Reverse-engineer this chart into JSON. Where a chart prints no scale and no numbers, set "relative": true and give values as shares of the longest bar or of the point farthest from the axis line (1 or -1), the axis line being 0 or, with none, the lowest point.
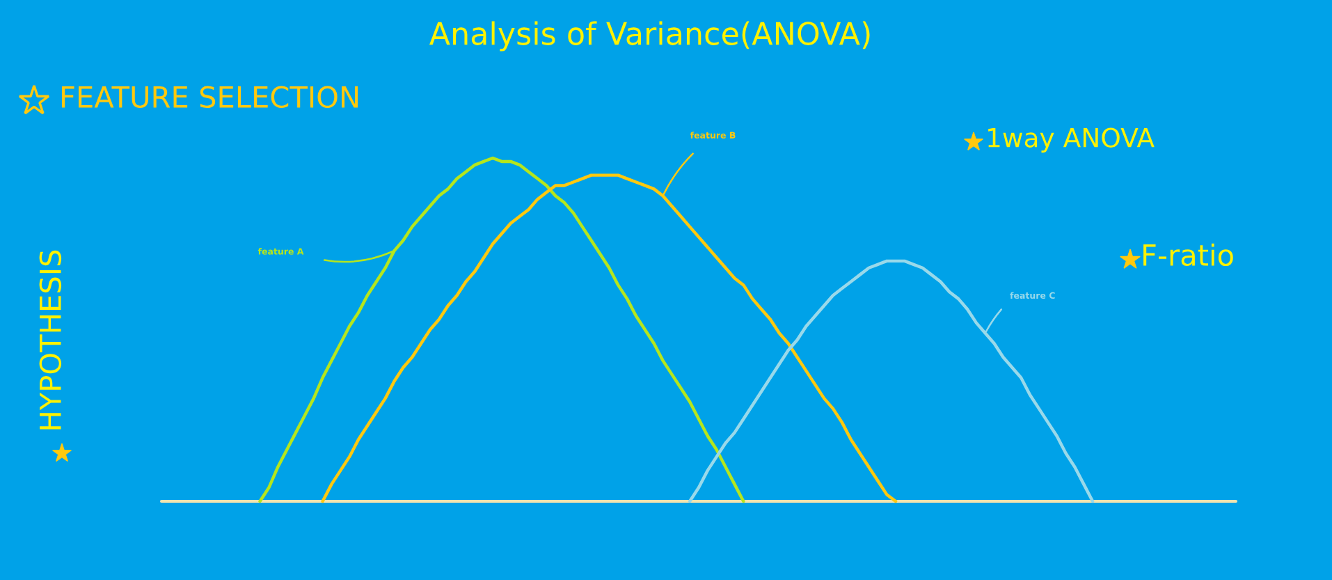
{
  "chart_data": {
    "type": "line",
    "title": "Analysis of Variance(ANOVA)",
    "annotations": [
      "FEATURE SELECTION",
      "1way ANOVA",
      "F-ratio",
      "HYPOTHESIS"
    ],
    "relative": true,
    "categories": [
      null,
      null,
      null,
      null,
      null,
      null,
      null,
      null,
      null,
      null,
      null,
      null,
      null,
      null,
      null,
      null,
      null,
      null,
      null,
      null,
      null,
      null,
      null,
      null,
      null,
      null,
      null,
      null,
      null,
      null,
      null,
      null,
      null,
      null,
      null,
      null,
      null,
      null,
      null,
      null,
      null,
      null,
      null,
      null,
      null,
      null,
      null,
      null,
      null,
      null,
      null,
      null,
      null,
      null,
      null,
      null,
      null,
      null,
      null,
      null,
      null,
      null,
      null,
      null,
      null,
      null,
      null,
      null,
      null,
      null,
      null,
      null,
      null,
      null,
      null,
      null,
      null,
      null,
      null,
      null,
      null,
      null,
      null,
      null,
      null,
      null,
      null,
      null,
      null,
      null,
      null,
      null,
      null,
      null,
      null,
      null,
      null,
      null,
      null,
      null,
      null,
      null,
      null,
      null,
      null,
      null,
      null,
      null,
      null,
      null,
      null,
      null,
      null,
      null,
      null,
      null,
      null,
      null,
      null,
      null,
      null
    ],
    "series": [
      {
        "name": "feature A",
        "color": "#b5e61d",
        "values": [
          null,
          null,
          null,
          null,
          null,
          null,
          null,
          null,
          null,
          null,
          null,
          0,
          0.04,
          0.1,
          0.15,
          0.2,
          0.25,
          0.3,
          0.36,
          0.41,
          0.46,
          0.51,
          0.55,
          0.6,
          0.64,
          0.68,
          0.73,
          0.76,
          0.8,
          0.83,
          0.86,
          0.89,
          0.91,
          0.94,
          0.96,
          0.98,
          0.99,
          1,
          0.99,
          0.99,
          0.98,
          0.96,
          0.94,
          0.92,
          0.89,
          0.87,
          0.84,
          0.8,
          0.76,
          0.72,
          0.68,
          0.63,
          0.59,
          0.54,
          0.5,
          0.46,
          0.41,
          0.37,
          0.33,
          0.29,
          0.24,
          0.19,
          0.15,
          0.1,
          0.05,
          0,
          null,
          null,
          null,
          null,
          null,
          null,
          null,
          null,
          null,
          null,
          null,
          null,
          null,
          null,
          null,
          null,
          null,
          null,
          null,
          null,
          null,
          null,
          null,
          null,
          null,
          null,
          null,
          null,
          null,
          null,
          null,
          null,
          null,
          null,
          null,
          null,
          null,
          null,
          null,
          null,
          null,
          null,
          null,
          null,
          null,
          null,
          null,
          null,
          null,
          null,
          null,
          null,
          null,
          null,
          null
        ]
      },
      {
        "name": "feature B",
        "color": "#ffc90e",
        "values": [
          null,
          null,
          null,
          null,
          null,
          null,
          null,
          null,
          null,
          null,
          null,
          null,
          null,
          null,
          null,
          null,
          null,
          null,
          0,
          0.05,
          0.09,
          0.13,
          0.18,
          0.22,
          0.26,
          0.3,
          0.35,
          0.39,
          0.42,
          0.46,
          0.5,
          0.53,
          0.57,
          0.6,
          0.64,
          0.67,
          0.71,
          0.75,
          0.78,
          0.81,
          0.83,
          0.85,
          0.88,
          0.9,
          0.92,
          0.92,
          0.93,
          0.94,
          0.95,
          0.95,
          0.95,
          0.95,
          0.94,
          0.93,
          0.92,
          0.91,
          0.89,
          0.86,
          0.83,
          0.8,
          0.77,
          0.74,
          0.71,
          0.68,
          0.65,
          0.63,
          0.59,
          0.56,
          0.53,
          0.49,
          0.46,
          0.42,
          0.38,
          0.34,
          0.3,
          0.27,
          0.23,
          0.18,
          0.14,
          0.1,
          0.06,
          0.02,
          0,
          null,
          null,
          null,
          null,
          null,
          null,
          null,
          null,
          null,
          null,
          null,
          null,
          null,
          null,
          null,
          null,
          null,
          null,
          null,
          null,
          null,
          null,
          null,
          null,
          null,
          null,
          null,
          null,
          null,
          null,
          null,
          null,
          null,
          null,
          null,
          null,
          null,
          null
        ]
      },
      {
        "name": "feature C",
        "color": "#99d9ea",
        "values": [
          null,
          null,
          null,
          null,
          null,
          null,
          null,
          null,
          null,
          null,
          null,
          null,
          null,
          null,
          null,
          null,
          null,
          null,
          null,
          null,
          null,
          null,
          null,
          null,
          null,
          null,
          null,
          null,
          null,
          null,
          null,
          null,
          null,
          null,
          null,
          null,
          null,
          null,
          null,
          null,
          null,
          null,
          null,
          null,
          null,
          null,
          null,
          null,
          null,
          null,
          null,
          null,
          null,
          null,
          null,
          null,
          null,
          null,
          null,
          0,
          0.04,
          0.09,
          0.13,
          0.17,
          0.2,
          0.24,
          0.28,
          0.32,
          0.36,
          0.4,
          0.44,
          0.47,
          0.51,
          0.54,
          0.57,
          0.6,
          0.62,
          0.64,
          0.66,
          0.68,
          0.69,
          0.7,
          0.7,
          0.7,
          0.69,
          0.68,
          0.66,
          0.64,
          0.61,
          0.59,
          0.56,
          0.52,
          0.49,
          0.46,
          0.42,
          0.39,
          0.36,
          0.31,
          0.27,
          0.23,
          0.19,
          0.14,
          0.1,
          0.05,
          0,
          null,
          null,
          null,
          null,
          null,
          null,
          null,
          null,
          null,
          null,
          null,
          null,
          null,
          null,
          null,
          null
        ]
      }
    ]
  }
}
